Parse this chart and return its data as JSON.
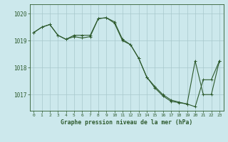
{
  "title": "Graphe pression niveau de la mer (hPa)",
  "background_color": "#cce8ec",
  "line_color": "#2d5a2d",
  "grid_color": "#a8c8cc",
  "x_ticks": [
    0,
    1,
    2,
    3,
    4,
    5,
    6,
    7,
    8,
    9,
    10,
    11,
    12,
    13,
    14,
    15,
    16,
    17,
    18,
    19,
    20,
    21,
    22,
    23
  ],
  "ylim": [
    1016.4,
    1020.35
  ],
  "yticks": [
    1017,
    1018,
    1019,
    1020
  ],
  "series1": [
    1019.3,
    1019.5,
    1019.6,
    1019.2,
    1019.05,
    1019.2,
    1019.2,
    1019.2,
    1019.82,
    1019.85,
    1019.7,
    1019.05,
    1018.85,
    1018.35,
    1017.65,
    1017.3,
    1017.0,
    1016.8,
    1016.72,
    1016.65,
    1016.55,
    1017.55,
    1017.55,
    1018.25
  ],
  "series2": [
    1019.3,
    1019.5,
    1019.6,
    1019.2,
    1019.05,
    1019.15,
    1019.1,
    1019.15,
    1019.82,
    1019.85,
    1019.65,
    1019.0,
    1018.85,
    1018.35,
    1017.65,
    1017.25,
    1016.95,
    1016.75,
    1016.7,
    1016.65,
    1018.25,
    1017.0,
    1017.0,
    1018.25
  ]
}
